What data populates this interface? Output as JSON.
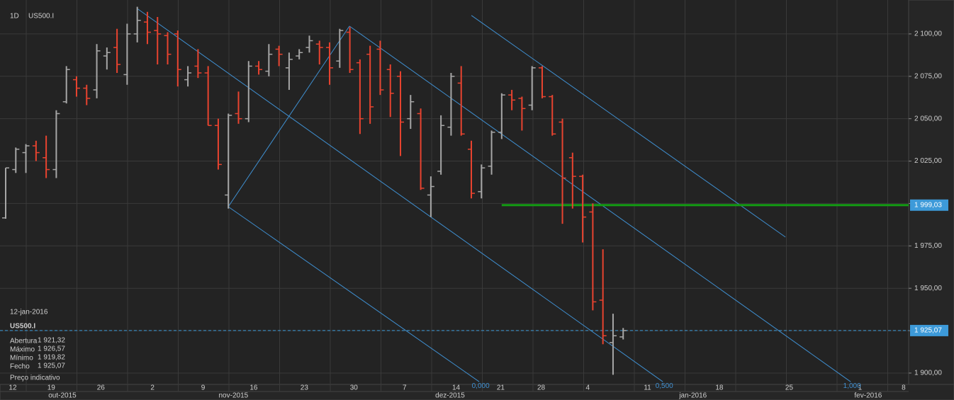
{
  "chart_data": {
    "type": "ohlc",
    "timeframe": "1D",
    "symbol": "US500.I",
    "up_color": "#a6a6a6",
    "down_color": "#e8432f",
    "open": [
      1991.5,
      2020,
      2030,
      2034,
      2027,
      2020,
      2060,
      2073,
      2068,
      2067,
      2087,
      2092,
      2076,
      2100,
      2107,
      2102,
      2099,
      2100,
      2073,
      2081,
      2077,
      2046,
      2005,
      2053,
      2050,
      2081,
      2078,
      2091,
      2080,
      2087,
      2092,
      2094,
      2092,
      2084,
      2101,
      2083,
      2088,
      2091,
      2079,
      2075,
      2050,
      2053,
      2005,
      2019,
      2045,
      2071,
      2032,
      2007,
      2022,
      2042,
      2064,
      2062,
      2058,
      2080,
      2063,
      2048,
      2027,
      2016,
      1995,
      1943,
      1918,
      1921.32
    ],
    "high": [
      2021,
      2033,
      2035,
      2037,
      2040,
      2055,
      2081,
      2075,
      2070,
      2094,
      2092,
      2103,
      2106,
      2116,
      2113,
      2110,
      2101,
      2102,
      2081,
      2091,
      2081,
      2050,
      2053,
      2066,
      2084,
      2084,
      2094,
      2093,
      2089,
      2091,
      2099,
      2096,
      2095,
      2103,
      2104,
      2085,
      2093,
      2096,
      2082,
      2078,
      2064,
      2056,
      2016,
      2052,
      2077,
      2081,
      2037,
      2023,
      2043,
      2065,
      2067,
      2063,
      2081,
      2081,
      2064,
      2050,
      2030,
      2017,
      2000,
      1973,
      1935,
      1926.57
    ],
    "low": [
      1991,
      2018,
      2018,
      2025,
      2015,
      2015,
      2059,
      2063,
      2058,
      2062,
      2079,
      2077,
      2070,
      2095,
      2094,
      2082,
      2082,
      2069,
      2069,
      2074,
      2046,
      2020,
      1997,
      2047,
      2048,
      2076,
      2075,
      2081,
      2067,
      2085,
      2089,
      2082,
      2070,
      2080,
      2077,
      2041,
      2047,
      2064,
      2051,
      2028,
      2044,
      2008,
      1992,
      2017,
      2040,
      2040,
      2003,
      2003,
      2017,
      2038,
      2055,
      2043,
      2055,
      2062,
      2040,
      1988,
      1997,
      1977,
      1937,
      1917,
      1899,
      1919.82
    ],
    "close": [
      2021,
      2032,
      2034,
      2030,
      2020,
      2053,
      2079,
      2068,
      2062,
      2090,
      2089,
      2082,
      2100,
      2108,
      2101,
      2100,
      2088,
      2079,
      2077,
      2077,
      2046,
      2023,
      2052,
      2050,
      2081,
      2079,
      2088,
      2088,
      2085,
      2089,
      2096,
      2092,
      2080,
      2102,
      2079,
      2050,
      2057,
      2067,
      2065,
      2048,
      2060,
      2009,
      2010,
      2046,
      2075,
      2041,
      2006,
      2021,
      2042,
      2064,
      2061,
      2056,
      2080,
      2063,
      2041,
      2015,
      2016,
      1992,
      1942,
      1922,
      1922,
      1925.07
    ],
    "xlim": [
      -0.56,
      89.2
    ],
    "ylim": [
      1893.3,
      2120
    ],
    "yticks": [
      {
        "value": 1900,
        "label": "1 900,00"
      },
      {
        "value": 1925,
        "label": "1 925,00"
      },
      {
        "value": 1950,
        "label": "1 950,00"
      },
      {
        "value": 1975,
        "label": "1 975,00"
      },
      {
        "value": 2000,
        "label": "2 000,00"
      },
      {
        "value": 2025,
        "label": "2 025,00"
      },
      {
        "value": 2050,
        "label": "2 050,00"
      },
      {
        "value": 2075,
        "label": "2 075,00"
      },
      {
        "value": 2100,
        "label": "2 100,00"
      }
    ],
    "xticks": [
      {
        "value": 0.7,
        "label": "12"
      },
      {
        "value": 4.5,
        "label": "19"
      },
      {
        "value": 9.4,
        "label": "26"
      },
      {
        "value": 14.5,
        "label": "2"
      },
      {
        "value": 19.5,
        "label": "9"
      },
      {
        "value": 24.5,
        "label": "16"
      },
      {
        "value": 29.5,
        "label": "23"
      },
      {
        "value": 34.4,
        "label": "30"
      },
      {
        "value": 39.4,
        "label": "7"
      },
      {
        "value": 44.5,
        "label": "14"
      },
      {
        "value": 48.9,
        "label": "21"
      },
      {
        "value": 52.9,
        "label": "28"
      },
      {
        "value": 57.5,
        "label": "4"
      },
      {
        "value": 63.4,
        "label": "11"
      },
      {
        "value": 70.5,
        "label": "18"
      },
      {
        "value": 77.4,
        "label": "25"
      },
      {
        "value": 84.4,
        "label": "1"
      },
      {
        "value": 88.7,
        "label": "8"
      }
    ],
    "month_ticks": [
      {
        "value": 5.6,
        "label": "out-2015"
      },
      {
        "value": 22.5,
        "label": "nov-2015"
      },
      {
        "value": 43.9,
        "label": "dez-2015"
      },
      {
        "value": 67.9,
        "label": "jan-2016"
      },
      {
        "value": 85.2,
        "label": "fev-2016"
      }
    ],
    "drawings": [
      {
        "color": "#3f8fd0",
        "points": [
          [
            21.99,
            1998.1
          ],
          [
            46.78,
            1894.9
          ]
        ],
        "level": {
          "value": 0,
          "label": "0,000"
        }
      },
      {
        "color": "#3f8fd0",
        "points": [
          [
            12.96,
            2115.1
          ],
          [
            64.92,
            1894.9
          ]
        ],
        "level": {
          "value": 0.5,
          "label": "0,500"
        }
      },
      {
        "color": "#3f8fd0",
        "points": [
          [
            33.96,
            2104.6
          ],
          [
            83.47,
            1894.9
          ]
        ],
        "level": {
          "value": 1,
          "label": "1,000"
        }
      },
      {
        "color": "#3f8fd0",
        "points": [
          [
            46.01,
            2110.9
          ],
          [
            77.03,
            1980.2
          ]
        ]
      },
      {
        "color": "#3f8fd0",
        "points": [
          [
            21.99,
            1998.1
          ],
          [
            33.96,
            2104.6
          ]
        ]
      }
    ],
    "horizontal_line": {
      "color": "#139a13",
      "start": 49.0,
      "value": 1999.03,
      "label": "1 999,03"
    },
    "price_line": {
      "color": "#3d9ad9",
      "value": 1925.07,
      "label": "1 925,07"
    },
    "info": {
      "date": "12-jan-2016",
      "symbol": "US500.I",
      "rows": [
        {
          "name": "Abertura",
          "value": "1 921,32"
        },
        {
          "name": "Máximo",
          "value": "1 926,57"
        },
        {
          "name": "Mínimo",
          "value": "1 919,82"
        },
        {
          "name": "Fecho",
          "value": "1 925,07"
        }
      ],
      "note": "Preço indicativo"
    }
  }
}
